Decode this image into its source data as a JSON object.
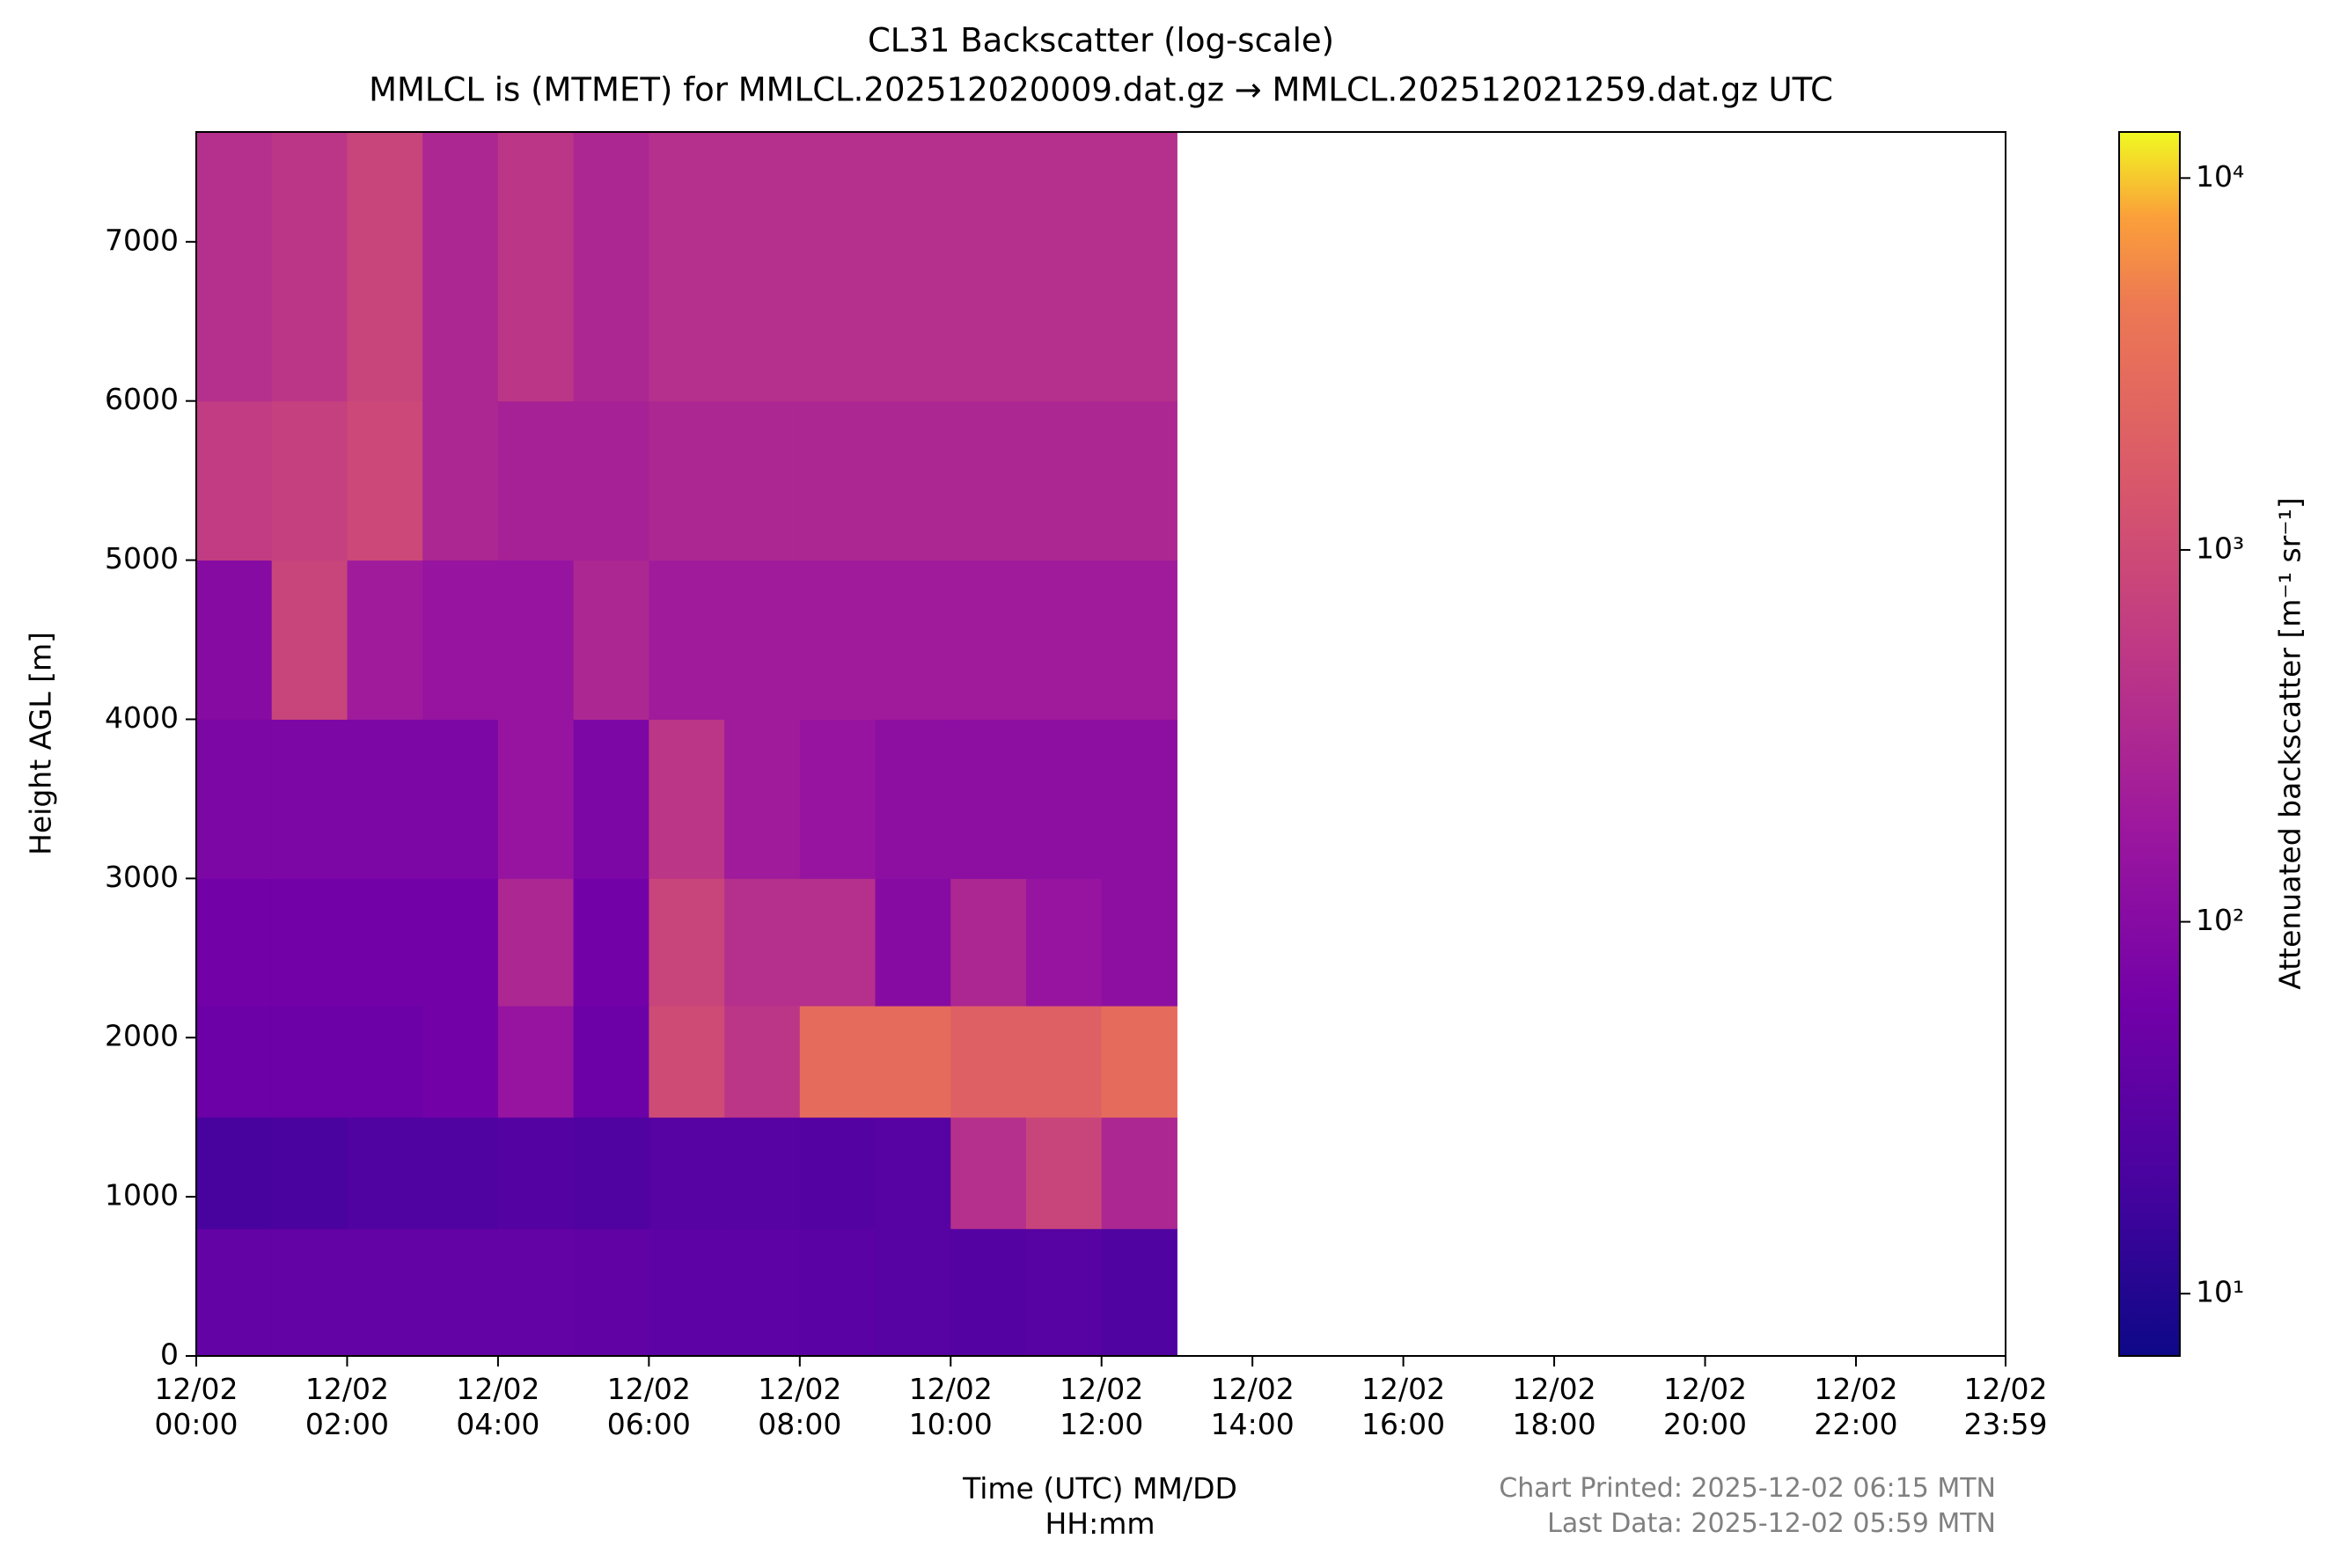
{
  "chart_data": {
    "type": "heatmap",
    "title": "CL31 Backscatter (log-scale)",
    "subtitle": "MMLCL is (MTMET) for MMLCL.202512020009.dat.gz → MMLCL.202512021259.dat.gz UTC",
    "x_label": "Time (UTC) MM/DD\nHH:mm",
    "y_label": "Height AGL [m]",
    "colorbar_label": "Attenuated backscatter [m⁻¹ sr⁻¹]",
    "footer": [
      "Chart Printed: 2025-12-02 06:15 MTN",
      "Last Data: 2025-12-02 05:59 MTN"
    ],
    "colormap": "plasma",
    "log_color": true,
    "clim": [
      6.8,
      13300
    ],
    "cticks": [
      {
        "value": 10,
        "label": "10¹"
      },
      {
        "value": 100,
        "label": "10²"
      },
      {
        "value": 1000,
        "label": "10³"
      },
      {
        "value": 10000,
        "label": "10⁴"
      }
    ],
    "xlim": [
      "12/02\n00:00",
      "12/02\n23:59"
    ],
    "xticks": [
      "12/02\n00:00",
      "12/02\n02:00",
      "12/02\n04:00",
      "12/02\n06:00",
      "12/02\n08:00",
      "12/02\n10:00",
      "12/02\n12:00",
      "12/02\n14:00",
      "12/02\n16:00",
      "12/02\n18:00",
      "12/02\n20:00",
      "12/02\n22:00",
      "12/02\n23:59"
    ],
    "ylim": [
      0,
      7690
    ],
    "yticks": [
      0,
      1000,
      2000,
      3000,
      4000,
      5000,
      6000,
      7000
    ],
    "x_bins": [
      "12/02\n00:00",
      "12/02\n01:00",
      "12/02\n02:00",
      "12/02\n03:00",
      "12/02\n04:00",
      "12/02\n05:00",
      "12/02\n06:00",
      "12/02\n07:00",
      "12/02\n08:00",
      "12/02\n09:00",
      "12/02\n10:00",
      "12/02\n11:00",
      "12/02\n12:00",
      "12/02\n13:00"
    ],
    "y_bins": [
      0,
      800,
      1500,
      2200,
      3000,
      4000,
      5000,
      6000,
      7690
    ],
    "values": [
      [
        40,
        40,
        40,
        40,
        40,
        38,
        35,
        35,
        32,
        30,
        28,
        30,
        25
      ],
      [
        20,
        22,
        25,
        25,
        28,
        25,
        30,
        30,
        28,
        30,
        400,
        800,
        300
      ],
      [
        50,
        50,
        50,
        60,
        150,
        50,
        1000,
        500,
        3000,
        3000,
        2000,
        2000,
        3000
      ],
      [
        60,
        60,
        60,
        60,
        300,
        60,
        800,
        400,
        400,
        100,
        300,
        150,
        120
      ],
      [
        80,
        80,
        80,
        80,
        150,
        80,
        500,
        200,
        150,
        120,
        120,
        120,
        120
      ],
      [
        100,
        800,
        200,
        150,
        150,
        300,
        200,
        200,
        200,
        200,
        200,
        200,
        200
      ],
      [
        600,
        700,
        900,
        300,
        250,
        250,
        300,
        300,
        300,
        300,
        300,
        300,
        300
      ],
      [
        400,
        500,
        800,
        300,
        500,
        300,
        400,
        400,
        400,
        400,
        400,
        400,
        400
      ]
    ]
  }
}
